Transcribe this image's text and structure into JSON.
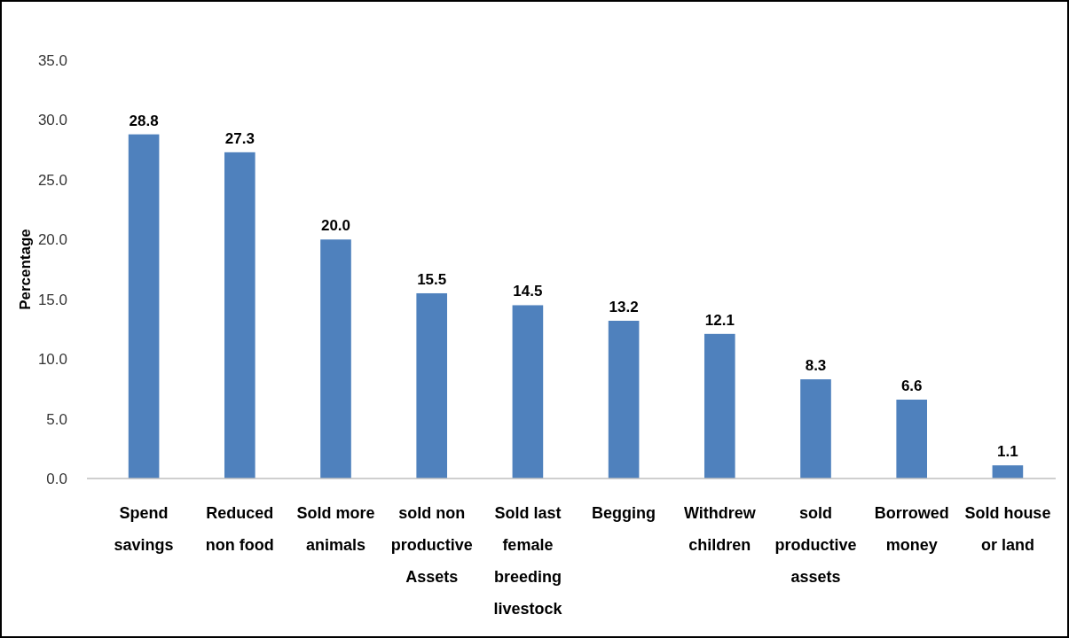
{
  "chart_data": {
    "type": "bar",
    "ylabel": "Percentage",
    "categories": [
      "Spend savings",
      "Reduced non food",
      "Sold more animals",
      "sold non productive Assets",
      "Sold last female breeding livestock",
      "Begging",
      "Withdrew children",
      "sold productive assets",
      "Borrowed money",
      "Sold house or land"
    ],
    "values": [
      28.8,
      27.3,
      20.0,
      15.5,
      14.5,
      13.2,
      12.1,
      8.3,
      6.6,
      1.1
    ],
    "value_labels": [
      "28.8",
      "27.3",
      "20.0",
      "15.5",
      "14.5",
      "13.2",
      "12.1",
      "8.3",
      "6.6",
      "1.1"
    ],
    "color": "#4f81bd",
    "ylim": [
      0,
      35
    ],
    "yticks": [
      {
        "value": 0,
        "label": "0.0"
      },
      {
        "value": 5,
        "label": "5.0"
      },
      {
        "value": 10,
        "label": "10.0"
      },
      {
        "value": 15,
        "label": "15.0"
      },
      {
        "value": 20,
        "label": "20.0"
      },
      {
        "value": 25,
        "label": "25.0"
      },
      {
        "value": 30,
        "label": "30.0"
      },
      {
        "value": 35,
        "label": "35.0"
      }
    ],
    "grid": false
  }
}
